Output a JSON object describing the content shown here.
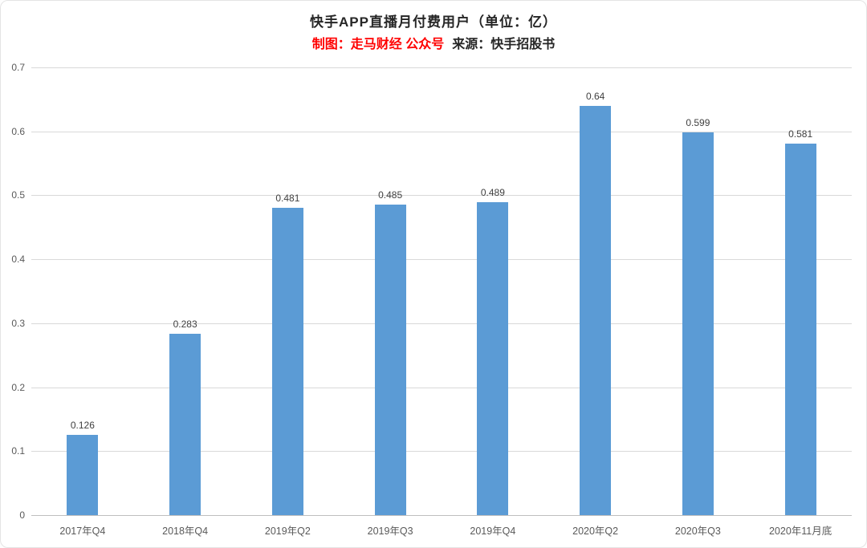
{
  "header": {
    "title": "快手APP直播月付费用户（单位：亿）",
    "credit_maker": "制图：走马财经 公众号",
    "credit_source": "来源：快手招股书"
  },
  "chart_data": {
    "type": "bar",
    "title": "快手APP直播月付费用户（单位：亿）",
    "categories": [
      "2017年Q4",
      "2018年Q4",
      "2019年Q2",
      "2019年Q3",
      "2019年Q4",
      "2020年Q2",
      "2020年Q3",
      "2020年11月底"
    ],
    "values": [
      0.126,
      0.283,
      0.481,
      0.485,
      0.489,
      0.64,
      0.599,
      0.581
    ],
    "value_labels": [
      "0.126",
      "0.283",
      "0.481",
      "0.485",
      "0.489",
      "0.64",
      "0.599",
      "0.581"
    ],
    "xlabel": "",
    "ylabel": "",
    "ylim": [
      0,
      0.7
    ],
    "y_ticks": [
      "0",
      "0.1",
      "0.2",
      "0.3",
      "0.4",
      "0.5",
      "0.6",
      "0.7"
    ],
    "grid": true,
    "legend_position": "none",
    "bar_color": "#5B9BD5",
    "gridline_color": "#d9d9d9",
    "accent_red": "#ff0000"
  }
}
